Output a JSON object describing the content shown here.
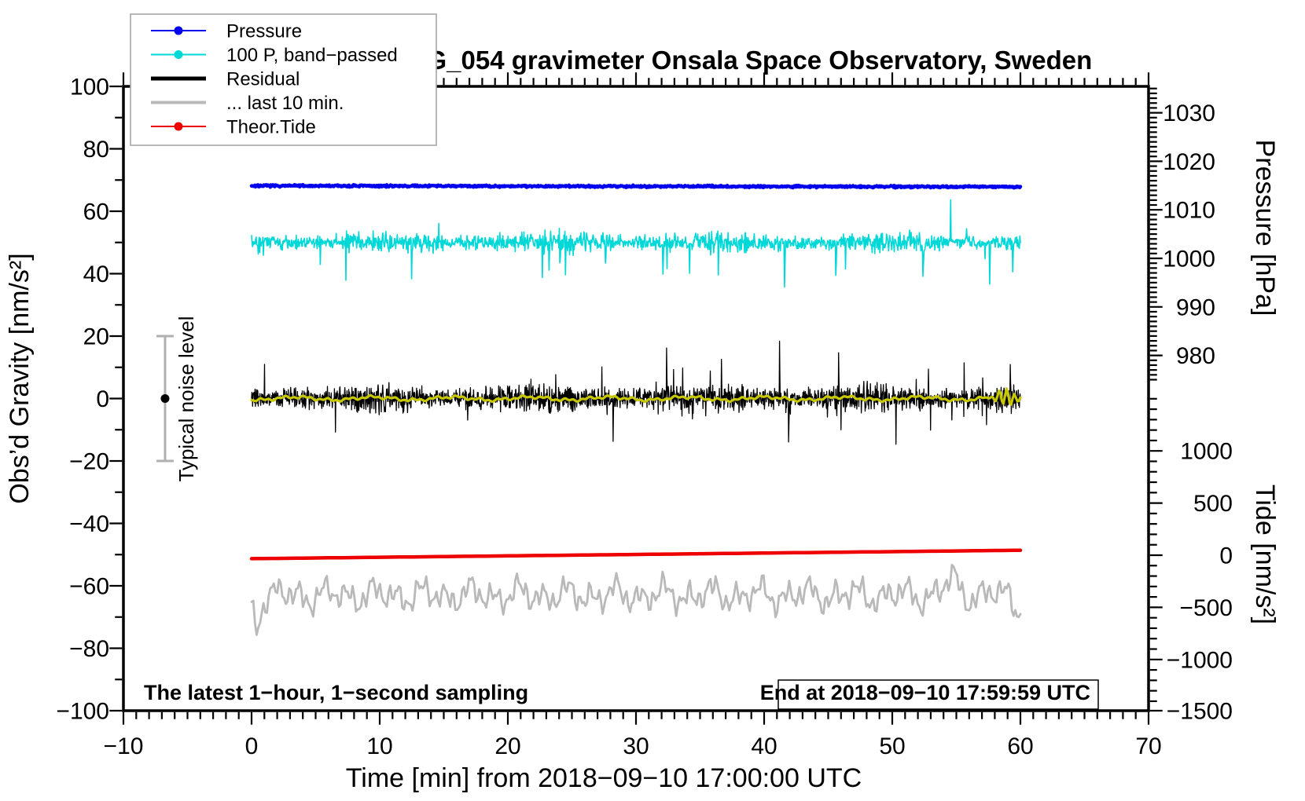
{
  "page": {
    "background": "#ffffff"
  },
  "chart_data": {
    "type": "line",
    "title": "SCG_054 gravimeter Onsala Space Observatory, Sweden",
    "xlabel": "Time [min] from 2018−09−10 17:00:00 UTC",
    "annotations": {
      "sampling_note": "The latest 1−hour, 1−second sampling",
      "end_note": "End at 2018−09−10 17:59:59 UTC",
      "noise_label": "Typical noise level",
      "noise_bar": {
        "x_time": -6.75,
        "center_value": 0,
        "half_range": 20,
        "bar_color": "#b0b0b0",
        "dot_color": "#000000"
      }
    },
    "x_axis": {
      "min": -10,
      "max": 70,
      "major_step": 10,
      "minor_step": 1,
      "tick_labels": [
        -10,
        0,
        10,
        20,
        30,
        40,
        50,
        60,
        70
      ]
    },
    "y_left": {
      "label": "Obs’d Gravity [nm/s²]",
      "min": -100,
      "max": 100,
      "major_step": 20,
      "minor_step": 10,
      "tick_labels": [
        100,
        80,
        60,
        40,
        20,
        0,
        -20,
        -40,
        -60,
        -80,
        -100
      ]
    },
    "y_right_pressure": {
      "label": "Pressure [hPa]",
      "tick_labels": [
        1030,
        1020,
        1010,
        1000,
        990,
        980
      ],
      "minor_step": 1,
      "axis_min": 975,
      "axis_max": 1035
    },
    "y_right_tide": {
      "label": "Tide [nm/s²]",
      "tick_labels": [
        1000,
        500,
        0,
        -500,
        -1000,
        -1500
      ],
      "minor_step": 100,
      "axis_min": -1500,
      "axis_max": 1500
    },
    "legend": {
      "entries": [
        {
          "label": "Pressure",
          "color": "#0000ee",
          "line_width": 2,
          "dot": true
        },
        {
          "label": "100 P, band−passed",
          "color": "#00d8d8",
          "line_width": 2,
          "dot": true
        },
        {
          "label": "Residual",
          "color": "#000000",
          "line_width": 5,
          "dot": false
        },
        {
          "label": "... last 10 min.",
          "color": "#b9b9b9",
          "line_width": 4,
          "dot": false
        },
        {
          "label": "Theor.Tide",
          "color": "#ee0000",
          "line_width": 2,
          "dot": true
        }
      ]
    },
    "series": [
      {
        "name": "Theor.Tide",
        "kind": "trend",
        "axis": "gravity",
        "color": "#ee0000",
        "width": 4.5,
        "points": 120,
        "seed": 1,
        "start": -51.3,
        "end": -48.6,
        "tide_axis_start_nms2": -20,
        "tide_axis_end_nms2": 75
      },
      {
        "name": "... last 10 min.",
        "kind": "smooth-noise",
        "axis": "gravity",
        "color": "#b9b9b9",
        "width": 2.8,
        "points": 450,
        "seed": 12,
        "baseline": -63,
        "amplitude": 3.3,
        "features": [
          {
            "t": 0.35,
            "v": -9,
            "w": 0.4
          },
          {
            "t": 54.6,
            "v": 5,
            "w": 0.7
          },
          {
            "t": 59.8,
            "v": -4,
            "w": 0.35
          }
        ]
      },
      {
        "name": "100 P, band−passed",
        "kind": "bandpass",
        "axis": "gravity",
        "color": "#00d8d8",
        "width": 1.6,
        "points": 1500,
        "seed": 21,
        "baseline": 50,
        "sigma": 1.6,
        "spike_prob": 0.012,
        "spike_min": 3,
        "spike_max": 12,
        "spike_down_frac": 0.8,
        "events": [
          {
            "t": 12.5,
            "v": -13
          },
          {
            "t": 23.2,
            "v": -8
          },
          {
            "t": 27.6,
            "v": -7
          },
          {
            "t": 32.1,
            "v": -9
          },
          {
            "t": 41.6,
            "v": -14
          },
          {
            "t": 45.6,
            "v": -10
          },
          {
            "t": 52.4,
            "v": -12
          },
          {
            "t": 57.6,
            "v": -13
          },
          {
            "t": 59.4,
            "v": -10
          }
        ]
      },
      {
        "name": "Pressure",
        "kind": "noisy-flat",
        "axis": "pressure",
        "color": "#0000ee",
        "width": 4.5,
        "points": 1200,
        "seed": 7,
        "baseline": 1014.95,
        "end_value": 1014.75,
        "noise": 0.1
      },
      {
        "name": "Residual",
        "kind": "bandpass",
        "axis": "gravity",
        "color": "#000000",
        "width": 1.3,
        "points": 2200,
        "seed": 33,
        "baseline": 0,
        "sigma": 2.2,
        "spike_prob": 0.015,
        "spike_min": 2.5,
        "spike_max": 10,
        "spike_down_frac": 0.5,
        "events": [
          {
            "t": 28.2,
            "v": -12
          },
          {
            "t": 32.4,
            "v": 16
          },
          {
            "t": 41.2,
            "v": 19
          },
          {
            "t": 41.9,
            "v": -13
          },
          {
            "t": 45.8,
            "v": 13
          },
          {
            "t": 50.3,
            "v": -11
          },
          {
            "t": 55.6,
            "v": 12
          },
          {
            "t": 59.2,
            "v": 10
          }
        ]
      },
      {
        "name": "Residual smoothed",
        "kind": "smooth",
        "axis": "gravity",
        "color": "#c8c800",
        "width": 3.2,
        "points": 500,
        "seed": 5,
        "baseline": 0,
        "amplitude": 0.9,
        "burst": {
          "t": 58.8,
          "w": 0.9,
          "amp": 2.8,
          "period": 0.6
        }
      }
    ],
    "data_span_minutes": [
      0,
      60
    ],
    "sampling": "1-second"
  }
}
